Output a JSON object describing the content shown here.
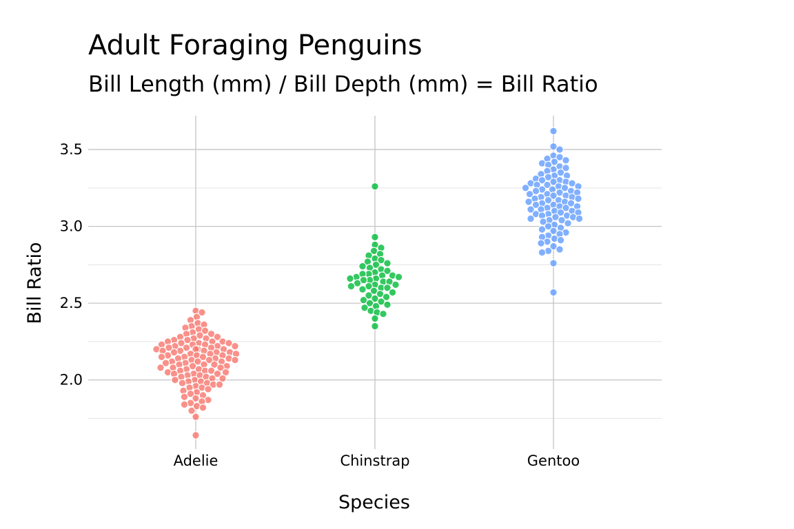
{
  "chart_data": {
    "type": "scatter",
    "title": "Adult Foraging Penguins",
    "subtitle": "Bill Length (mm) / Bill Depth (mm) = Bill Ratio",
    "xlabel": "Species",
    "ylabel": "Bill Ratio",
    "ylim": [
      1.55,
      3.72
    ],
    "yticks": [
      "2.0",
      "2.5",
      "3.0",
      "3.5"
    ],
    "grid": true,
    "categories": [
      "Adelie",
      "Chinstrap",
      "Gentoo"
    ],
    "series": [
      {
        "name": "Adelie",
        "color": "#F8766D",
        "y": [
          2.45,
          2.44,
          2.41,
          2.39,
          2.37,
          2.36,
          2.35,
          2.34,
          2.33,
          2.32,
          2.31,
          2.3,
          2.3,
          2.29,
          2.28,
          2.28,
          2.27,
          2.27,
          2.26,
          2.26,
          2.25,
          2.25,
          2.25,
          2.24,
          2.24,
          2.24,
          2.23,
          2.23,
          2.23,
          2.22,
          2.22,
          2.22,
          2.21,
          2.21,
          2.21,
          2.2,
          2.2,
          2.2,
          2.2,
          2.19,
          2.19,
          2.19,
          2.18,
          2.18,
          2.18,
          2.17,
          2.17,
          2.17,
          2.16,
          2.16,
          2.16,
          2.15,
          2.15,
          2.15,
          2.14,
          2.14,
          2.14,
          2.13,
          2.13,
          2.13,
          2.12,
          2.12,
          2.12,
          2.11,
          2.11,
          2.1,
          2.1,
          2.1,
          2.09,
          2.09,
          2.08,
          2.08,
          2.08,
          2.07,
          2.07,
          2.06,
          2.06,
          2.06,
          2.05,
          2.05,
          2.04,
          2.04,
          2.04,
          2.03,
          2.03,
          2.02,
          2.02,
          2.01,
          2.01,
          2.0,
          2.0,
          1.99,
          1.99,
          1.98,
          1.98,
          1.97,
          1.97,
          1.96,
          1.95,
          1.95,
          1.94,
          1.93,
          1.92,
          1.91,
          1.9,
          1.89,
          1.88,
          1.87,
          1.86,
          1.85,
          1.84,
          1.83,
          1.82,
          1.8,
          1.76,
          1.64
        ]
      },
      {
        "name": "Chinstrap",
        "color": "#00BA38",
        "y": [
          3.26,
          2.93,
          2.88,
          2.86,
          2.84,
          2.82,
          2.81,
          2.79,
          2.78,
          2.77,
          2.76,
          2.75,
          2.74,
          2.73,
          2.72,
          2.71,
          2.7,
          2.69,
          2.69,
          2.68,
          2.68,
          2.67,
          2.67,
          2.66,
          2.66,
          2.65,
          2.65,
          2.64,
          2.64,
          2.63,
          2.62,
          2.62,
          2.61,
          2.61,
          2.6,
          2.6,
          2.59,
          2.58,
          2.57,
          2.56,
          2.55,
          2.54,
          2.53,
          2.52,
          2.51,
          2.5,
          2.49,
          2.48,
          2.47,
          2.45,
          2.44,
          2.43,
          2.4,
          2.35
        ]
      },
      {
        "name": "Gentoo",
        "color": "#619CFF",
        "y": [
          3.62,
          3.52,
          3.5,
          3.46,
          3.45,
          3.44,
          3.43,
          3.42,
          3.41,
          3.4,
          3.39,
          3.38,
          3.37,
          3.36,
          3.35,
          3.34,
          3.33,
          3.33,
          3.32,
          3.31,
          3.3,
          3.3,
          3.29,
          3.29,
          3.28,
          3.28,
          3.27,
          3.27,
          3.26,
          3.26,
          3.25,
          3.25,
          3.24,
          3.24,
          3.23,
          3.23,
          3.22,
          3.22,
          3.21,
          3.21,
          3.2,
          3.2,
          3.19,
          3.19,
          3.18,
          3.18,
          3.17,
          3.17,
          3.16,
          3.16,
          3.15,
          3.15,
          3.14,
          3.14,
          3.13,
          3.13,
          3.12,
          3.12,
          3.11,
          3.11,
          3.1,
          3.1,
          3.09,
          3.09,
          3.08,
          3.08,
          3.07,
          3.07,
          3.06,
          3.06,
          3.05,
          3.05,
          3.04,
          3.04,
          3.03,
          3.02,
          3.01,
          3.0,
          2.99,
          2.98,
          2.97,
          2.96,
          2.95,
          2.94,
          2.93,
          2.92,
          2.91,
          2.9,
          2.89,
          2.87,
          2.85,
          2.84,
          2.83,
          2.76,
          2.57
        ]
      }
    ]
  }
}
